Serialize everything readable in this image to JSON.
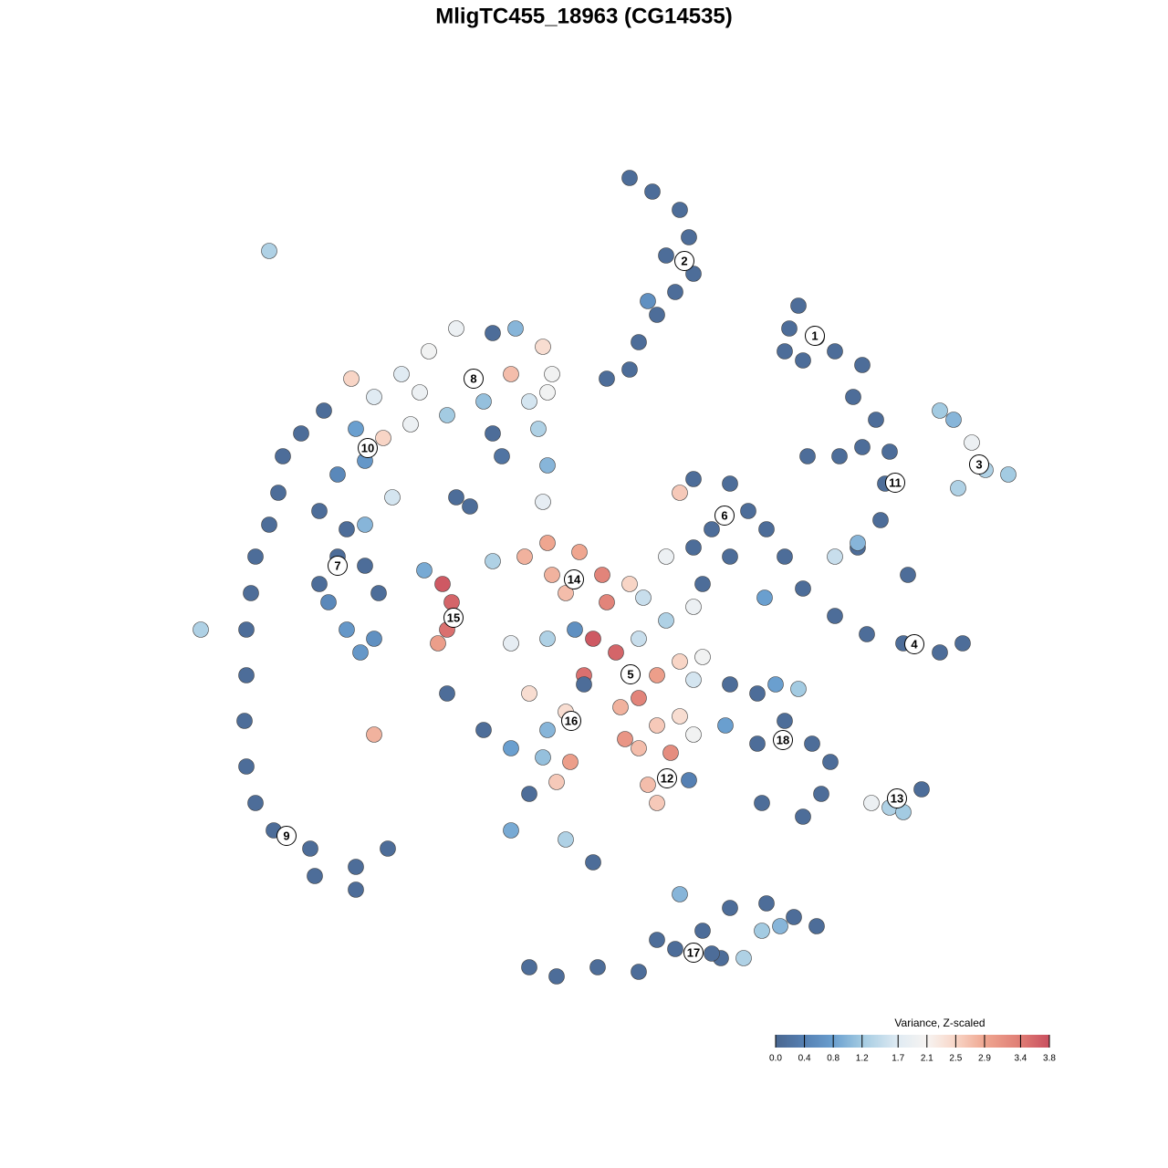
{
  "chart_data": {
    "type": "scatter",
    "title": "MligTC455_18963 (CG14535)",
    "colorbar_title": "Variance, Z-scaled",
    "xlim": [
      -46,
      46
    ],
    "ylim": [
      -46,
      46
    ],
    "colorlim": [
      0,
      3.8
    ],
    "colorticks": [
      {
        "value": 0,
        "label": "0.0"
      },
      0.4,
      0.8,
      1.2,
      1.7,
      2.1,
      2.5,
      2.9,
      3.4,
      3.8
    ],
    "colors": [
      "#4a6790",
      "#5580b3",
      "#6a9fcf",
      "#a3cbe2",
      "#e0ebf3",
      "#f7f4f2",
      "#f8d5c6",
      "#efa690",
      "#df7c74",
      "#c94e5e"
    ],
    "x": [
      3,
      5.5,
      8.5,
      9.5,
      7,
      10,
      8,
      6,
      4,
      3,
      0.5,
      5,
      21.5,
      20.5,
      23.5,
      22,
      25.5,
      20,
      28.5,
      27.5,
      30,
      28.5,
      26,
      22.5,
      31,
      30.5,
      28,
      31.5,
      25.5,
      33.5,
      28,
      37,
      38.5,
      40.5,
      42,
      44.5,
      39,
      10,
      14,
      16,
      12,
      10,
      14,
      18,
      8.5,
      7,
      11,
      10,
      20,
      22,
      25.5,
      29,
      33,
      37,
      39.5,
      17.8,
      -16,
      -12,
      -9.5,
      -6.5,
      -5.5,
      -19,
      -22,
      -27.5,
      -25,
      -20,
      -14,
      -10,
      -13,
      -8,
      -6,
      -17,
      -12,
      -7,
      -6,
      -11,
      -21,
      -24,
      -6.5,
      -30.5,
      -33,
      -35,
      -35.5,
      -36.5,
      -38,
      -38.5,
      -39,
      -39,
      -39.2,
      -39,
      -38,
      -36,
      -32,
      -27,
      -23.5,
      -27,
      -31.5,
      -27,
      -26,
      -29,
      -23,
      -16,
      -14.5,
      -31,
      -28,
      -29,
      -31,
      -26,
      -24.5,
      -30,
      -28,
      -26.5,
      -25,
      -26,
      -36.5,
      -44,
      -25,
      -17.5,
      -16.5,
      -17,
      -18,
      -19.5,
      -12,
      -8.5,
      -6,
      -5.5,
      -2.5,
      0,
      3,
      0.5,
      -4,
      4.5,
      -1,
      1.5,
      4,
      -2,
      6,
      4,
      2,
      8.5,
      11,
      10,
      -6,
      -10,
      -3,
      7,
      -17,
      -13,
      -10,
      -6,
      -4,
      -8,
      -2,
      -6.5,
      -3.5,
      -8,
      -5,
      -10,
      -4,
      -1,
      4,
      7.5,
      5,
      6,
      9.5,
      6,
      10,
      8.5,
      2.5,
      13.5,
      14,
      17,
      19,
      21.5,
      20,
      17,
      23,
      25,
      24,
      17.5,
      22,
      29.5,
      31.5,
      33,
      35,
      8.5,
      -8,
      -5,
      -0.5,
      4,
      8,
      11,
      14,
      18,
      21,
      23.5,
      19.5,
      17.5,
      15.5,
      13,
      6,
      12
    ],
    "y": [
      44.5,
      43,
      41,
      38,
      36,
      34,
      32,
      29.5,
      26.5,
      23.5,
      22.5,
      31,
      30.5,
      28,
      27,
      24.5,
      25.5,
      25.5,
      24,
      20.5,
      18,
      15,
      14,
      14,
      11,
      7,
      4,
      14.5,
      3,
      1,
      4.5,
      19,
      18,
      15.5,
      12.5,
      12,
      10.5,
      11.5,
      11,
      8,
      6,
      4,
      3,
      6,
      10,
      3,
      0,
      -2.5,
      3,
      -0.5,
      -3.5,
      -5.5,
      -6.5,
      -7.5,
      -6.5,
      -1.5,
      28,
      27.5,
      28,
      26,
      23,
      25.5,
      23,
      22.5,
      20.5,
      21,
      22.5,
      23,
      20,
      20,
      21,
      18.5,
      16.5,
      17,
      13,
      14,
      17.5,
      16,
      9,
      19,
      16.5,
      14,
      10,
      6.5,
      3,
      -1,
      -5,
      -10,
      -15,
      -20,
      -24,
      -27,
      -29,
      -31,
      -29,
      -33.5,
      -32,
      17,
      13.5,
      12,
      9.5,
      9.5,
      8.5,
      8,
      6,
      3,
      0,
      2,
      -1,
      -2,
      -5,
      -7.5,
      -6,
      6.5,
      36.5,
      -5,
      -16.5,
      0,
      -2,
      -5,
      -6.5,
      1.5,
      2.5,
      3,
      4.5,
      1,
      3.5,
      1,
      0,
      -2,
      -1,
      -1.5,
      -6,
      -7.5,
      -6,
      -10,
      -10,
      -12.5,
      -13.5,
      -8.5,
      -8,
      -10.5,
      -6,
      -6.5,
      -5,
      -4,
      -12,
      -16,
      -18,
      -16,
      -14,
      -12,
      -11,
      -19,
      -19.5,
      -23,
      -21.7,
      -27,
      -28,
      -30.5,
      -18,
      -18.5,
      -22,
      -24,
      -21.5,
      -15.5,
      -16.5,
      -14.5,
      -17,
      -15.5,
      -11,
      -12,
      -11,
      -11.5,
      -15,
      -17.5,
      -17.5,
      -19.5,
      -23,
      -24,
      -25.5,
      -24,
      -24.5,
      -25,
      -22.5,
      -34,
      -42,
      -43,
      -42,
      -42.5,
      -40,
      -38,
      -35.5,
      -35,
      -36.5,
      -37.5,
      -37.5,
      -38,
      -41,
      -41,
      -39,
      -40.5
    ],
    "values": [
      0.1,
      0.1,
      0.1,
      0.1,
      0.1,
      0.1,
      0.1,
      0.1,
      0.1,
      0.1,
      0.1,
      0.6,
      0.1,
      0.1,
      0.1,
      0.1,
      0.1,
      0.1,
      0.1,
      0.1,
      0.1,
      0.1,
      0.1,
      0.1,
      0.1,
      0.1,
      0.1,
      0.1,
      1.5,
      0.1,
      1.0,
      1.2,
      1.0,
      1.9,
      1.3,
      1.2,
      1.3,
      0.1,
      0.1,
      0.1,
      0.1,
      0.1,
      0.1,
      0.1,
      2.6,
      1.9,
      0.1,
      1.9,
      0.1,
      0.1,
      0.1,
      0.1,
      0.1,
      0.1,
      0.1,
      0.8,
      1.9,
      0.1,
      1.0,
      2.4,
      2.0,
      2.0,
      1.7,
      2.5,
      1.7,
      1.9,
      1.5,
      2.7,
      1.1,
      1.6,
      2.0,
      1.2,
      0.1,
      1.3,
      1.0,
      0.2,
      1.9,
      2.5,
      1.8,
      0.1,
      0.1,
      0.1,
      0.1,
      0.1,
      0.1,
      0.1,
      0.1,
      0.1,
      0.1,
      0.1,
      0.1,
      0.1,
      0.1,
      0.1,
      0.1,
      0.1,
      0.1,
      0.8,
      0.7,
      0.5,
      1.6,
      0.1,
      0.1,
      0.1,
      0.1,
      0.1,
      0.1,
      0.1,
      0.1,
      0.5,
      0.7,
      0.7,
      0.6,
      1.0,
      1.3,
      1.3,
      2.8,
      3.7,
      3.6,
      3.5,
      3.0,
      0.9,
      1.3,
      2.8,
      2.9,
      2.8,
      2.9,
      3.3,
      2.5,
      3.3,
      2.7,
      1.5,
      3.7,
      3.6,
      1.5,
      3.5,
      3.0,
      3.3,
      2.8,
      2.5,
      2.0,
      1.6,
      1.3,
      1.8,
      0.6,
      1.3,
      0.1,
      0.1,
      0.8,
      1.0,
      2.4,
      2.4,
      0.1,
      1.1,
      3.0,
      0.1,
      2.6,
      0.9,
      1.3,
      0.1,
      2.7,
      3.2,
      2.7,
      2.6,
      0.4,
      2.6,
      2.0,
      2.4,
      3.1,
      0.8,
      0.1,
      0.1,
      0.8,
      1.2,
      0.1,
      0.1,
      0.1,
      0.1,
      0.1,
      0.1,
      0.1,
      1.9,
      1.3,
      1.2,
      0.1,
      1.0,
      0.1,
      0.1,
      0.1,
      0.1,
      0.1,
      0.1,
      0.1,
      0.1,
      0.1,
      0.1,
      1.0,
      1.2,
      1.3,
      0.1,
      0.1,
      0.1
    ],
    "cluster_labels": [
      "1",
      "2",
      "3",
      "4",
      "5",
      "6",
      "7",
      "8",
      "9",
      "10",
      "11",
      "12",
      "13",
      "14",
      "15",
      "16",
      "17",
      "18"
    ],
    "cluster_x": [
      23.3,
      9,
      41.3,
      34.2,
      3.1,
      13.4,
      -29,
      -14.1,
      -34.6,
      -25.7,
      32.1,
      7.1,
      32.3,
      -3.1,
      -16.3,
      -3.4,
      10,
      19.8
    ],
    "cluster_y": [
      27.2,
      35.4,
      13.1,
      -6.6,
      -9.9,
      7.5,
      2,
      22.5,
      -27.6,
      14.9,
      11.1,
      -21.3,
      -23.5,
      0.5,
      -3.7,
      -15,
      -40.4,
      -17.1
    ]
  }
}
